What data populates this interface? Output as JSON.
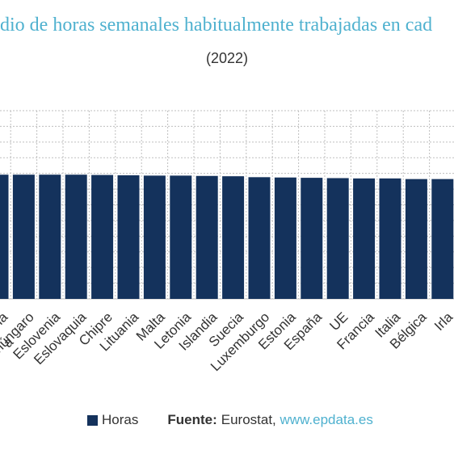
{
  "chart_data": {
    "type": "bar",
    "title": "dio de horas semanales habitualmente trabajadas en cad",
    "subtitle": "(2022)",
    "categories": [
      "Croacia",
      "húngaro",
      "Eslovenia",
      "Eslovaquia",
      "Chipre",
      "Lituania",
      "Malta",
      "Letonia",
      "Islandia",
      "Suecia",
      "Luxemburgo",
      "Estonia",
      "España",
      "UE",
      "Francia",
      "Italia",
      "Bélgica",
      "Irla"
    ],
    "partial_left_label": "a",
    "series": [
      {
        "name": "Horas",
        "values": [
          39.6,
          39.6,
          39.6,
          39.6,
          39.5,
          39.4,
          39.3,
          39.3,
          39.2,
          39.1,
          38.8,
          38.7,
          38.6,
          38.5,
          38.4,
          38.4,
          38.2,
          38.2
        ]
      }
    ],
    "ylim": [
      0,
      60
    ],
    "grid": true,
    "bar_color": "#14325c",
    "grid_color": "#bfbfbf",
    "legend_position": "bottom"
  },
  "legend": {
    "label": "Horas",
    "color": "#14325c"
  },
  "source": {
    "label": "Fuente:",
    "name": "Eurostat,",
    "link": "www.epdata.es"
  },
  "colors": {
    "title": "#4fb1cf",
    "link": "#4fb1cf",
    "text": "#333333"
  }
}
